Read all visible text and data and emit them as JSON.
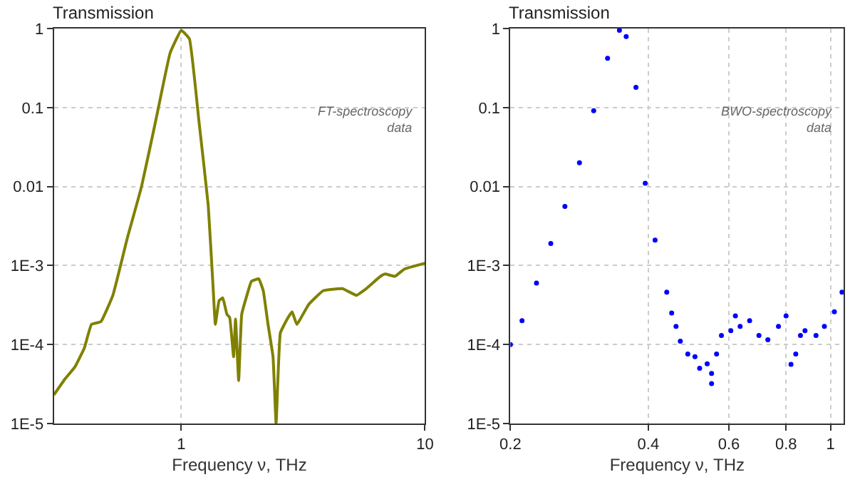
{
  "chart_data": [
    {
      "type": "line",
      "title": "Transmission",
      "xlabel": "Frequency ν, THz",
      "log": "xy",
      "grid": true,
      "marker": "none",
      "line_style": "solid",
      "xlim": [
        0.3,
        10
      ],
      "xticks": [
        1,
        10
      ],
      "ylim": [
        1e-05,
        1
      ],
      "yticks": [
        {
          "value": 1e-05,
          "label": "1E-5"
        },
        {
          "value": 0.0001,
          "label": "1E-4"
        },
        {
          "value": 0.001,
          "label": "1E-3"
        },
        0.01,
        0.1,
        1
      ],
      "annotations": [
        "FT-spectroscopy data"
      ],
      "series": [
        {
          "color": "#808000",
          "x": [
            0.3,
            0.334,
            0.366,
            0.4,
            0.428,
            0.468,
            0.524,
            0.6,
            0.687,
            0.787,
            0.9,
            1.0,
            1.08,
            1.18,
            1.29,
            1.35,
            1.38,
            1.43,
            1.48,
            1.54,
            1.58,
            1.64,
            1.67,
            1.72,
            1.77,
            1.86,
            1.94,
            2.08,
            2.17,
            2.27,
            2.38,
            2.45,
            2.55,
            2.72,
            2.85,
            2.98,
            3.33,
            3.82,
            4.58,
            5.24,
            5.74,
            6.57,
            6.87,
            7.53,
            8.23,
            10
          ],
          "values": [
            2.3e-05,
            3.7e-05,
            5.2e-05,
            9e-05,
            0.00018,
            0.000195,
            0.00042,
            0.0022,
            0.01,
            0.07,
            0.49,
            0.95,
            0.74,
            0.07,
            0.0058,
            0.00055,
            0.00018,
            0.00036,
            0.00039,
            0.00024,
            0.00022,
            7e-05,
            0.00021,
            3.5e-05,
            0.00024,
            0.00042,
            0.00063,
            0.00068,
            0.00048,
            0.00018,
            7e-05,
            1e-05,
            0.00014,
            0.00021,
            0.00026,
            0.00018,
            0.00032,
            0.00048,
            0.00051,
            0.00042,
            0.00051,
            0.00073,
            0.00078,
            0.00073,
            0.0009,
            0.00107
          ]
        }
      ]
    },
    {
      "type": "scatter",
      "title": "Transmission",
      "xlabel": "Frequency ν, THz",
      "log": "xy",
      "grid": true,
      "marker": "circle",
      "xlim": [
        0.2,
        1.07
      ],
      "xticks": [
        0.2,
        0.4,
        0.6,
        0.8,
        1
      ],
      "ylim": [
        1e-05,
        1
      ],
      "yticks": [
        {
          "value": 1e-05,
          "label": "1E-5"
        },
        {
          "value": 0.0001,
          "label": "1E-4"
        },
        {
          "value": 0.001,
          "label": "1E-3"
        },
        0.01,
        0.1,
        1
      ],
      "annotations": [
        "BWO-spectroscopy data"
      ],
      "series": [
        {
          "color": "#0000ff",
          "x": [
            0.2,
            0.212,
            0.228,
            0.245,
            0.263,
            0.283,
            0.304,
            0.326,
            0.346,
            0.358,
            0.376,
            0.394,
            0.414,
            0.439,
            0.45,
            0.46,
            0.47,
            0.488,
            0.506,
            0.518,
            0.538,
            0.55,
            0.55,
            0.564,
            0.578,
            0.606,
            0.62,
            0.635,
            0.666,
            0.698,
            0.73,
            0.77,
            0.8,
            0.82,
            0.84,
            0.86,
            0.88,
            0.93,
            0.97,
            1.02,
            1.06
          ],
          "values": [
            0.0001,
            0.0002,
            0.0006,
            0.0019,
            0.0056,
            0.02,
            0.091,
            0.42,
            0.95,
            0.79,
            0.18,
            0.011,
            0.0021,
            0.00046,
            0.00025,
            0.00017,
            0.00011,
            7.6e-05,
            7e-05,
            5e-05,
            5.7e-05,
            4.3e-05,
            3.2e-05,
            7.6e-05,
            0.00013,
            0.00015,
            0.00023,
            0.00017,
            0.0002,
            0.00013,
            0.000115,
            0.00017,
            0.00023,
            5.6e-05,
            7.6e-05,
            0.00013,
            0.00015,
            0.00013,
            0.00017,
            0.00026,
            0.00046
          ]
        }
      ]
    }
  ]
}
